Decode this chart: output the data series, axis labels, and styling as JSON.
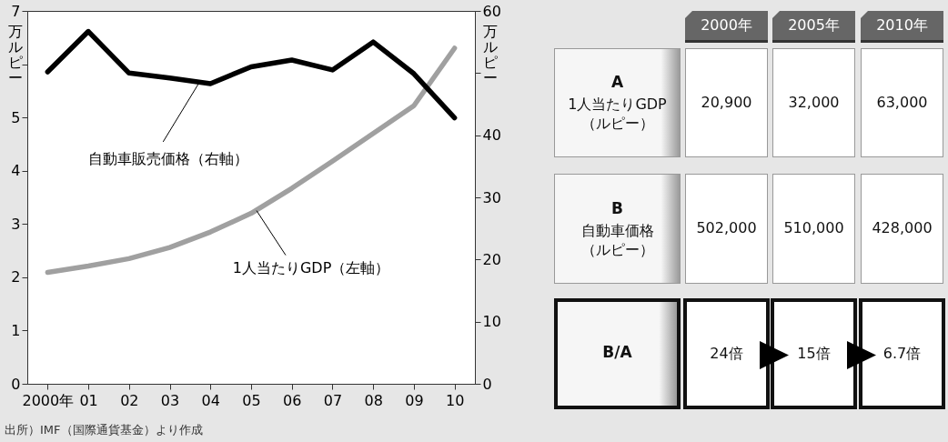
{
  "chart_data": [
    {
      "type": "line",
      "categories": [
        "2000年",
        "01",
        "02",
        "03",
        "04",
        "05",
        "06",
        "07",
        "08",
        "09",
        "10"
      ],
      "series": [
        {
          "name": "1人当たりGDP（左軸）",
          "color": "#a0a0a0",
          "values": [
            2.09,
            2.21,
            2.35,
            2.56,
            2.85,
            3.2,
            3.67,
            4.18,
            4.7,
            5.22,
            6.3
          ]
        },
        {
          "name": "自動車販売価格（右軸）",
          "color": "#000000",
          "axis": "y2",
          "values": [
            50.2,
            56.7,
            50.0,
            49.2,
            48.3,
            51.0,
            52.1,
            50.5,
            55.0,
            49.9,
            42.8
          ]
        }
      ],
      "ylabel": "万ルピー",
      "y2label": "万ルピー",
      "ylim": [
        0,
        7
      ],
      "yticks": [
        0,
        1,
        2,
        3,
        4,
        5,
        {
          "value": 6,
          "label": null
        },
        7
      ],
      "y2lim": [
        0,
        60
      ],
      "y2ticks": [
        0,
        10,
        20,
        30,
        40,
        {
          "value": 50,
          "label": null
        },
        60
      ],
      "annotations": [
        "出所）IMF（国際通貨基金）より作成"
      ]
    },
    {
      "type": "other",
      "categories": [
        "2000年",
        "2005年",
        "2010年"
      ],
      "y_categories": [
        [
          "A",
          "1人当たりGDP",
          "（ルピー）"
        ],
        [
          "B",
          "自動車価格",
          "（ルピー）"
        ],
        [
          "B/A"
        ]
      ],
      "cell_labels": [
        [
          "20,900",
          "32,000",
          "63,000"
        ],
        [
          "502,000",
          "510,000",
          "428,000"
        ],
        [
          "24倍",
          "15倍",
          "6.7倍"
        ]
      ]
    }
  ]
}
